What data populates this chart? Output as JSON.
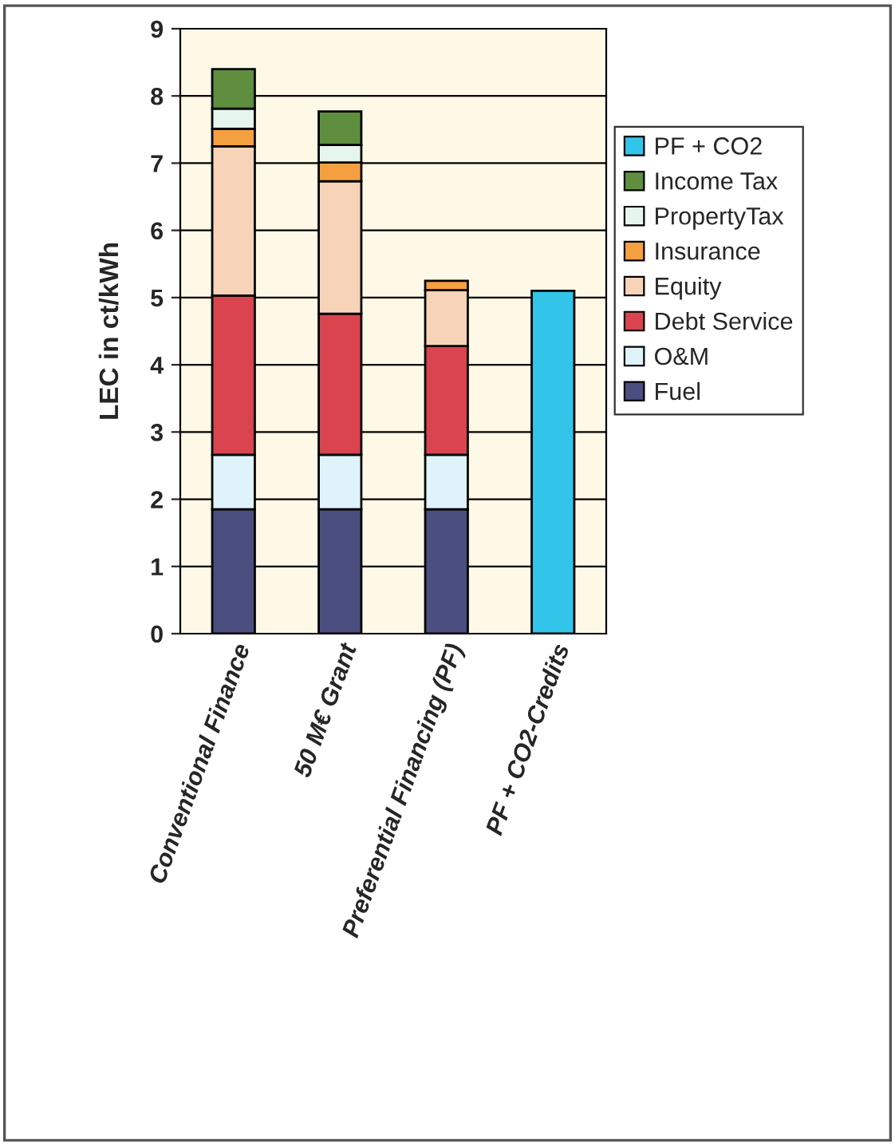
{
  "chart_data": {
    "type": "bar",
    "stacked": true,
    "ylabel": "LEC in ct/kWh",
    "categories": [
      "Conventional Finance",
      "50 M€ Grant",
      "Preferential Financing (PF)",
      "PF + CO2-Credits"
    ],
    "series": [
      {
        "name": "Fuel",
        "color": "#4a4f80",
        "values": [
          1.85,
          1.85,
          1.85,
          null
        ]
      },
      {
        "name": "O&M",
        "color": "#dff3fa",
        "values": [
          0.81,
          0.81,
          0.81,
          null
        ]
      },
      {
        "name": "Debt Service",
        "color": "#d9444e",
        "values": [
          2.37,
          2.1,
          1.62,
          null
        ]
      },
      {
        "name": "Equity",
        "color": "#f7d3b8",
        "values": [
          2.22,
          1.97,
          0.83,
          null
        ]
      },
      {
        "name": "Insurance",
        "color": "#f5a040",
        "values": [
          0.26,
          0.28,
          0.14,
          null
        ]
      },
      {
        "name": "PropertyTax",
        "color": "#e6f5ee",
        "values": [
          0.3,
          0.26,
          null,
          null
        ]
      },
      {
        "name": "Income Tax",
        "color": "#5f8f3e",
        "values": [
          0.59,
          0.5,
          null,
          null
        ]
      },
      {
        "name": "PF + CO2",
        "color": "#33c4ea",
        "values": [
          null,
          null,
          null,
          5.1
        ]
      }
    ],
    "ylim": [
      0,
      9
    ],
    "yticks": [
      0,
      1,
      2,
      3,
      4,
      5,
      6,
      7,
      8,
      9
    ],
    "grid": "y",
    "legend": "right"
  }
}
